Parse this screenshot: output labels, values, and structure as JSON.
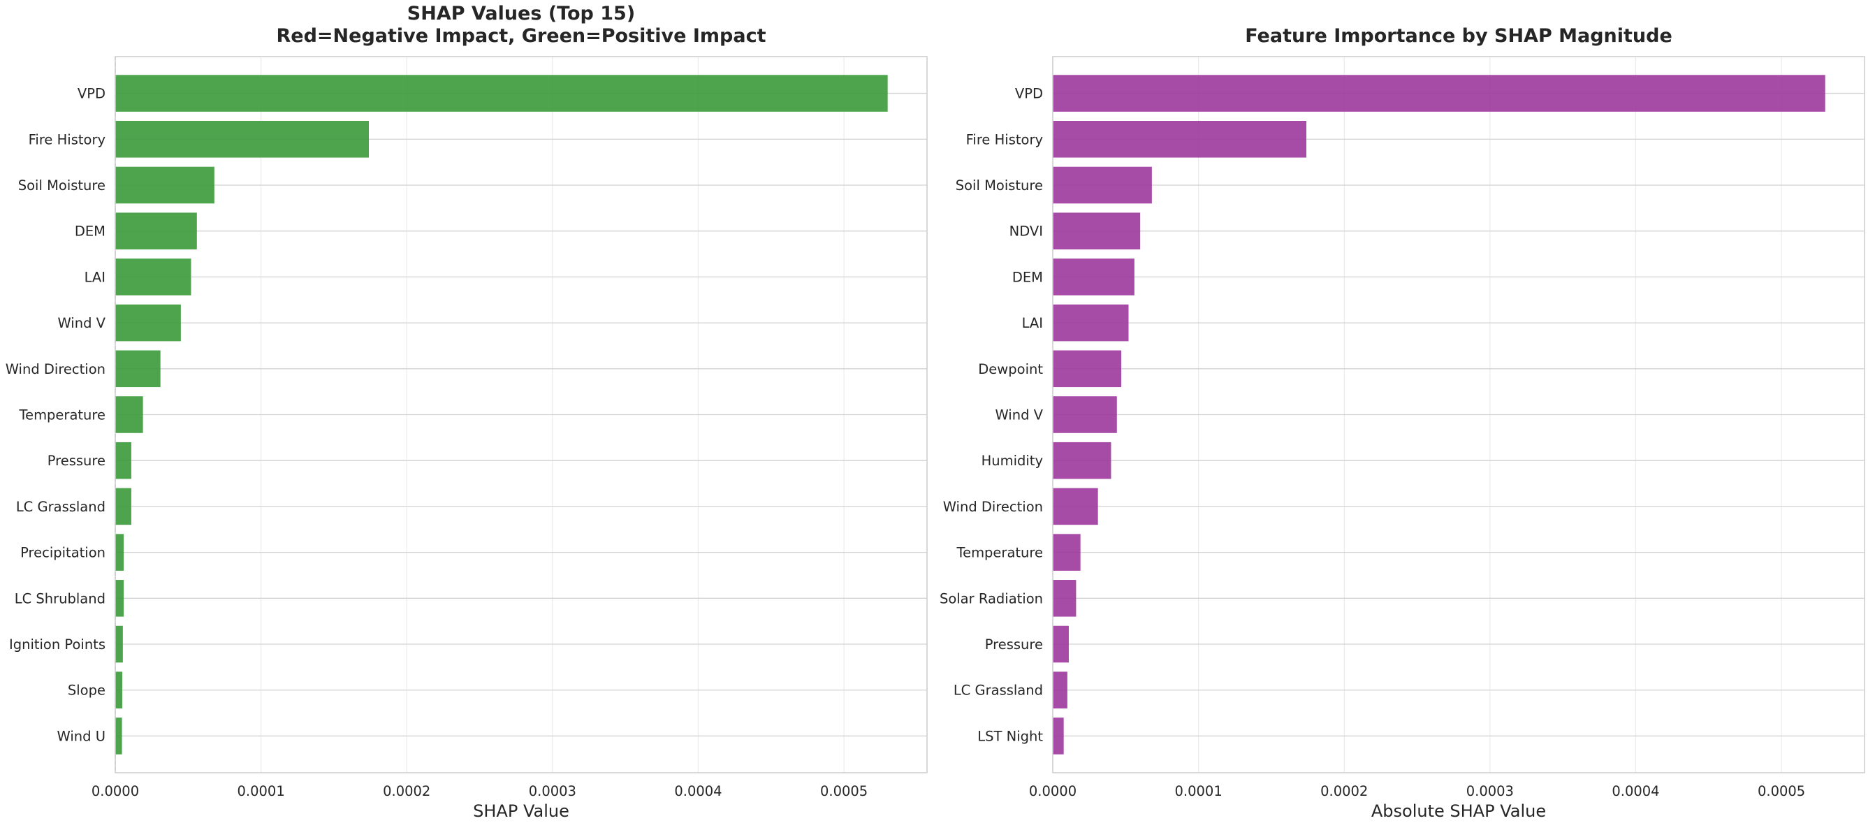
{
  "chart_data": [
    {
      "type": "bar",
      "orientation": "horizontal",
      "title_lines": [
        "SHAP Values (Top 15)",
        "Red=Negative Impact, Green=Positive Impact"
      ],
      "xlabel": "SHAP Value",
      "ylabel": "",
      "xlim": [
        0,
        0.000557
      ],
      "xticks": [
        0,
        0.0001,
        0.0002,
        0.0003,
        0.0004,
        0.0005
      ],
      "xtick_labels": [
        "0.0000",
        "0.0001",
        "0.0002",
        "0.0003",
        "0.0004",
        "0.0005"
      ],
      "grid": true,
      "color": "#3a9a3a",
      "categories": [
        "VPD",
        "Fire History",
        "Soil Moisture",
        "DEM",
        "LAI",
        "Wind V",
        "Wind Direction",
        "Temperature",
        "Pressure",
        "LC Grassland",
        "Precipitation",
        "LC Shrubland",
        "Ignition Points",
        "Slope",
        "Wind U"
      ],
      "values": [
        0.00053,
        0.000174,
        6.8e-05,
        5.6e-05,
        5.2e-05,
        4.5e-05,
        3.1e-05,
        1.9e-05,
        1.1e-05,
        1.1e-05,
        5.8e-06,
        5.8e-06,
        5.2e-06,
        4.8e-06,
        4.6e-06
      ]
    },
    {
      "type": "bar",
      "orientation": "horizontal",
      "title_lines": [
        "Feature Importance by SHAP Magnitude"
      ],
      "xlabel": "Absolute SHAP Value",
      "ylabel": "",
      "xlim": [
        0,
        0.000557
      ],
      "xticks": [
        0,
        0.0001,
        0.0002,
        0.0003,
        0.0004,
        0.0005
      ],
      "xtick_labels": [
        "0.0000",
        "0.0001",
        "0.0002",
        "0.0003",
        "0.0004",
        "0.0005"
      ],
      "grid": true,
      "color": "#9c379c",
      "categories": [
        "VPD",
        "Fire History",
        "Soil Moisture",
        "NDVI",
        "DEM",
        "LAI",
        "Dewpoint",
        "Wind V",
        "Humidity",
        "Wind Direction",
        "Temperature",
        "Solar Radiation",
        "Pressure",
        "LC Grassland",
        "LST Night"
      ],
      "values": [
        0.00053,
        0.000174,
        6.8e-05,
        6e-05,
        5.6e-05,
        5.2e-05,
        4.7e-05,
        4.4e-05,
        4e-05,
        3.1e-05,
        1.9e-05,
        1.6e-05,
        1.1e-05,
        1e-05,
        7.5e-06
      ]
    }
  ]
}
